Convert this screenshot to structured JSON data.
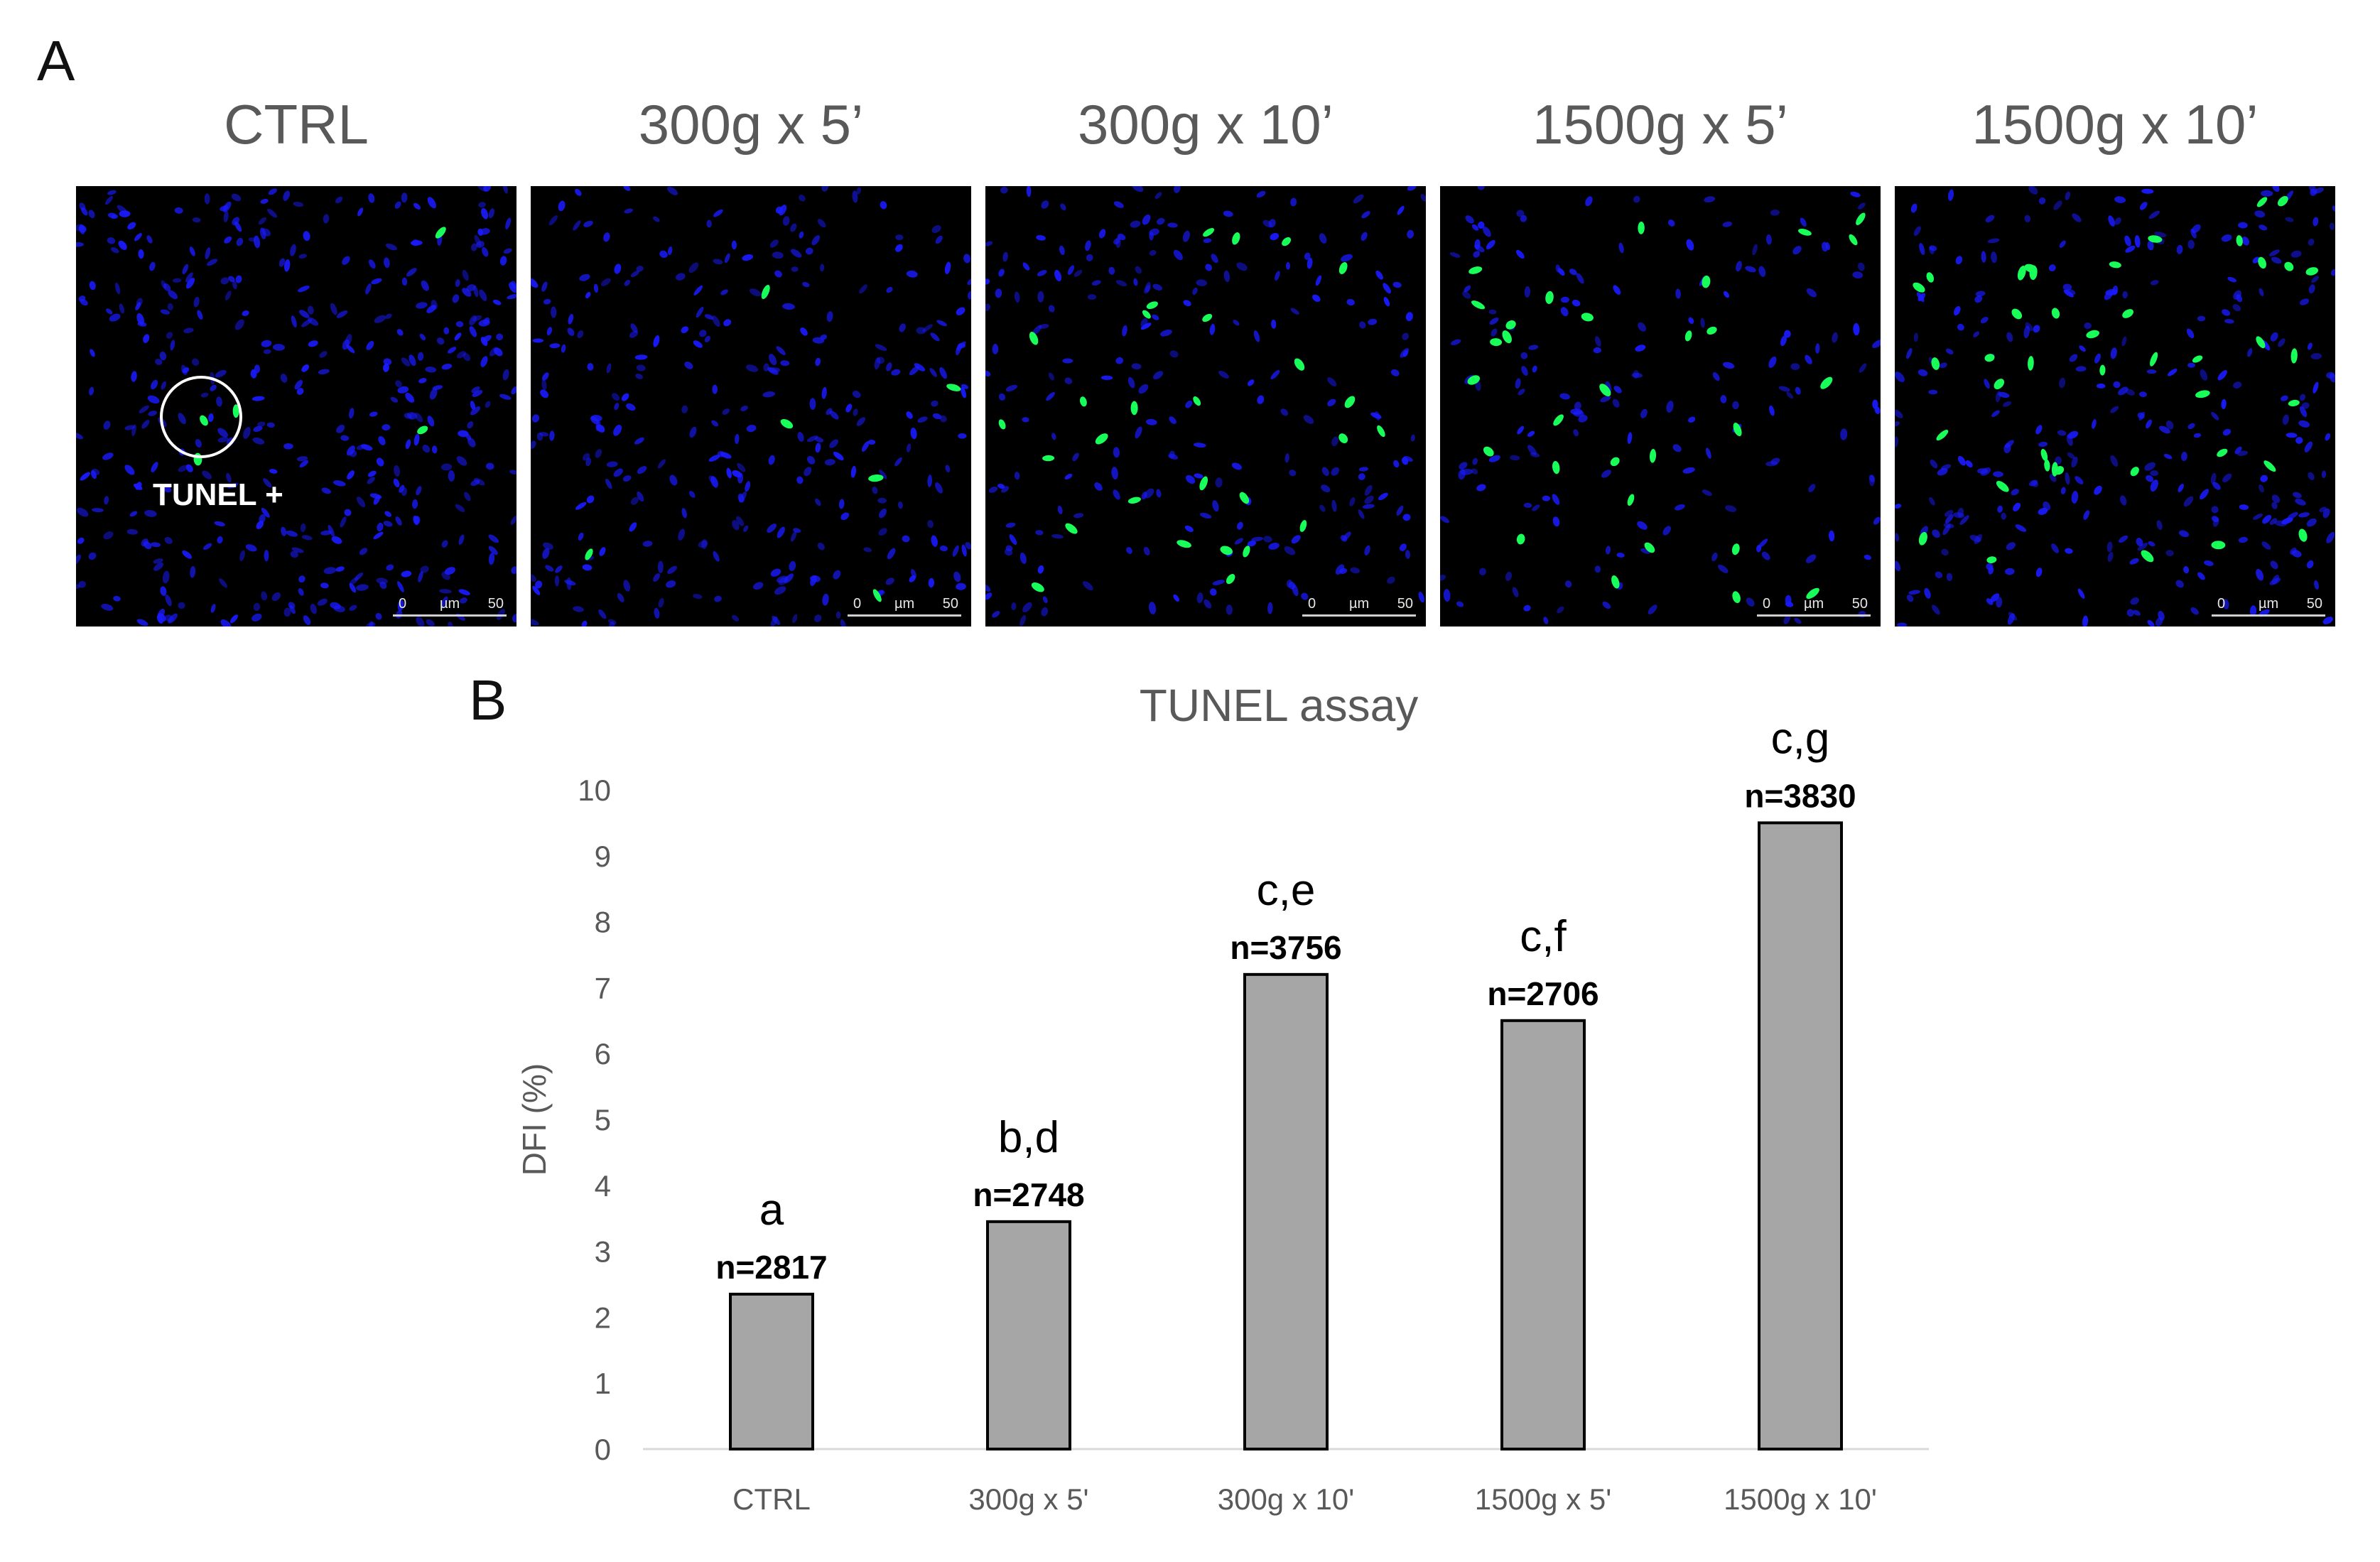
{
  "panel_a": {
    "letter": "A",
    "conditions": [
      "CTRL",
      "300g x 5’",
      "300g x 10’",
      "1500g x 5’",
      "1500g x 10’"
    ],
    "annotation": "TUNEL +",
    "scale_bar": {
      "start": "0",
      "unit": "µm",
      "end": "50"
    },
    "colors": {
      "nuclei": "#1a1aff",
      "tunel_positive": "#19ff5a",
      "background": "#000000"
    }
  },
  "panel_b": {
    "letter": "B"
  },
  "chart_data": {
    "type": "bar",
    "title": "TUNEL assay",
    "ylabel": "DFI (%)",
    "xlabel": "",
    "categories": [
      "CTRL",
      "300g x 5'",
      "300g x 10'",
      "1500g x 5'",
      "1500g x 10'"
    ],
    "values": [
      2.35,
      3.45,
      7.2,
      6.5,
      9.5
    ],
    "counts": [
      "n=2817",
      "n=2748",
      "n=3756",
      "n=2706",
      "n=3830"
    ],
    "significance": [
      "a",
      "b,d",
      "c,e",
      "c,f",
      "c,g"
    ],
    "ylim": [
      0,
      10
    ],
    "yticks": [
      "0",
      "1",
      "2",
      "3",
      "4",
      "5",
      "6",
      "7",
      "8",
      "9",
      "10"
    ],
    "grid": false,
    "bar_color": "#a6a6a6",
    "bar_edge_color": "#000000"
  }
}
